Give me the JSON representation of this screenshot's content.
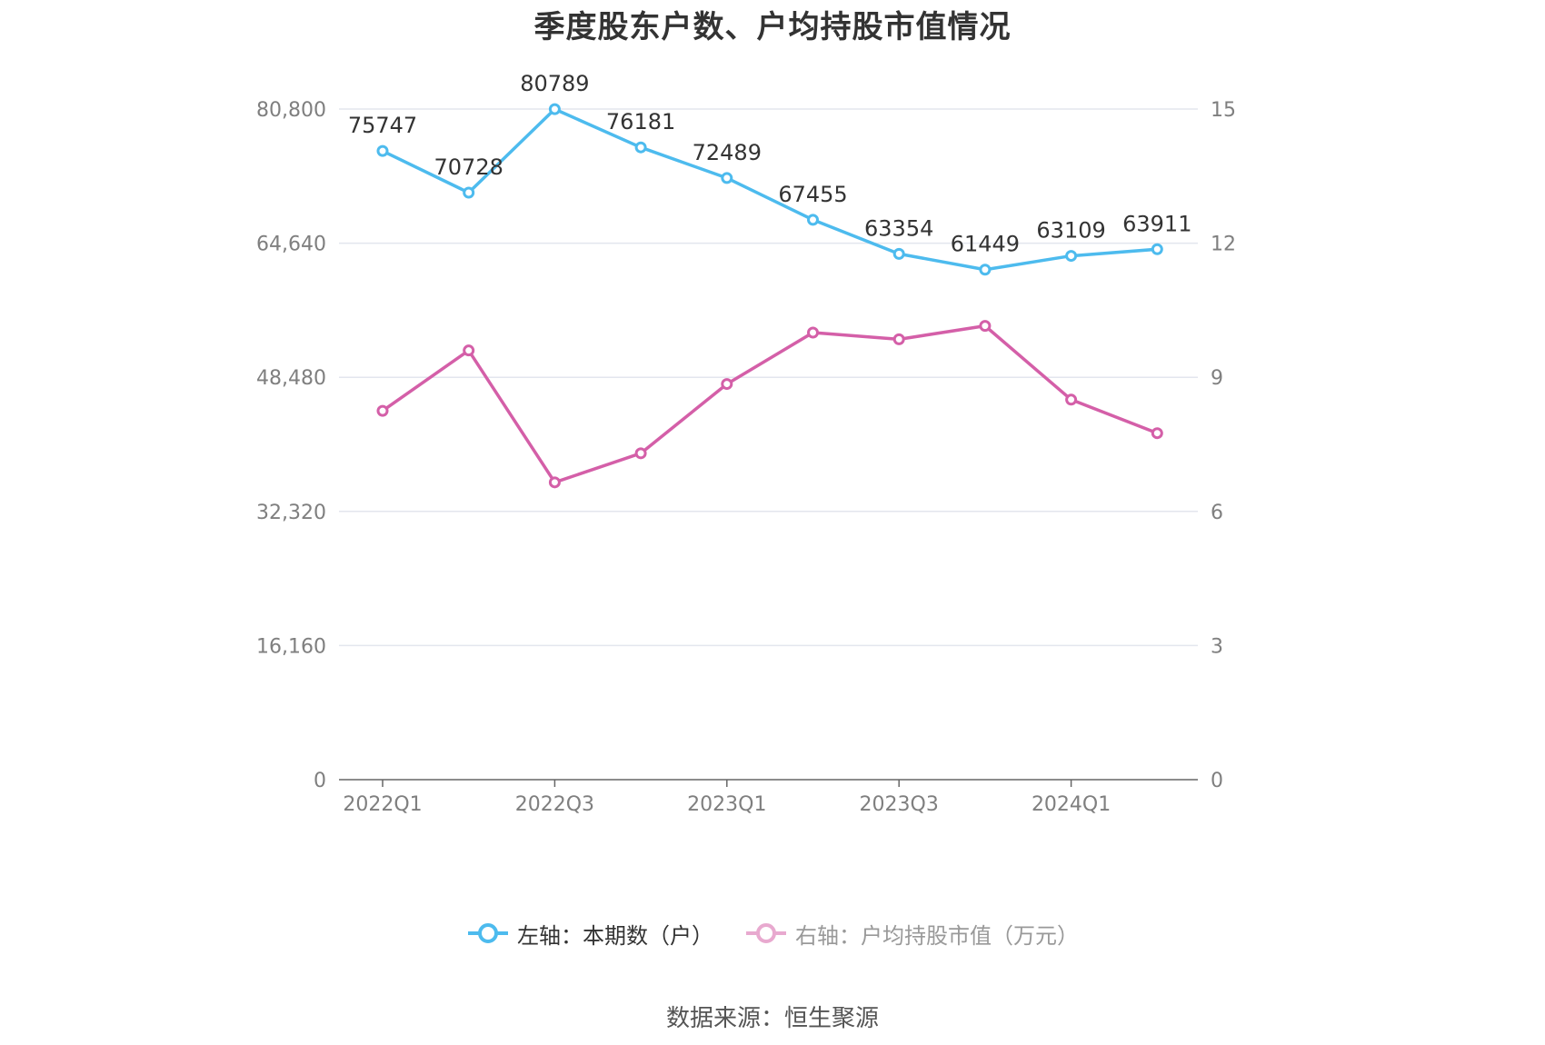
{
  "title": "季度股东户数、户均持股市值情况",
  "source": "数据来源：恒生聚源",
  "chart_data": {
    "type": "line",
    "title": "季度股东户数、户均持股市值情况",
    "categories": [
      "2022Q1",
      "2022Q2",
      "2022Q3",
      "2022Q4",
      "2023Q1",
      "2023Q2",
      "2023Q3",
      "2023Q4",
      "2024Q1",
      "2024Q2"
    ],
    "x_tick_labels": [
      "2022Q1",
      "2022Q3",
      "2023Q1",
      "2023Q3",
      "2024Q1"
    ],
    "left_axis": {
      "ylim": [
        0,
        80800
      ],
      "ticks": [
        "0",
        "16,160",
        "32,320",
        "48,480",
        "64,640",
        "80,800"
      ]
    },
    "right_axis": {
      "ylim": [
        0,
        15
      ],
      "ticks": [
        "0",
        "3",
        "6",
        "9",
        "12",
        "15"
      ]
    },
    "series": [
      {
        "name": "左轴：本期数（户）",
        "axis": "left",
        "color": "#4dbbee",
        "values": [
          75747,
          70728,
          80789,
          76181,
          72489,
          67455,
          63354,
          61449,
          63109,
          63911
        ],
        "labels": [
          "75747",
          "70728",
          "80789",
          "76181",
          "72489",
          "67455",
          "63354",
          "61449",
          "63109",
          "63911"
        ]
      },
      {
        "name": "右轴：户均持股市值（万元）",
        "axis": "right",
        "color": "#d45fa8",
        "values": [
          8.25,
          9.6,
          6.65,
          7.3,
          8.85,
          10.0,
          9.85,
          10.15,
          8.5,
          7.75
        ]
      }
    ],
    "grid": true,
    "legend_position": "bottom"
  }
}
